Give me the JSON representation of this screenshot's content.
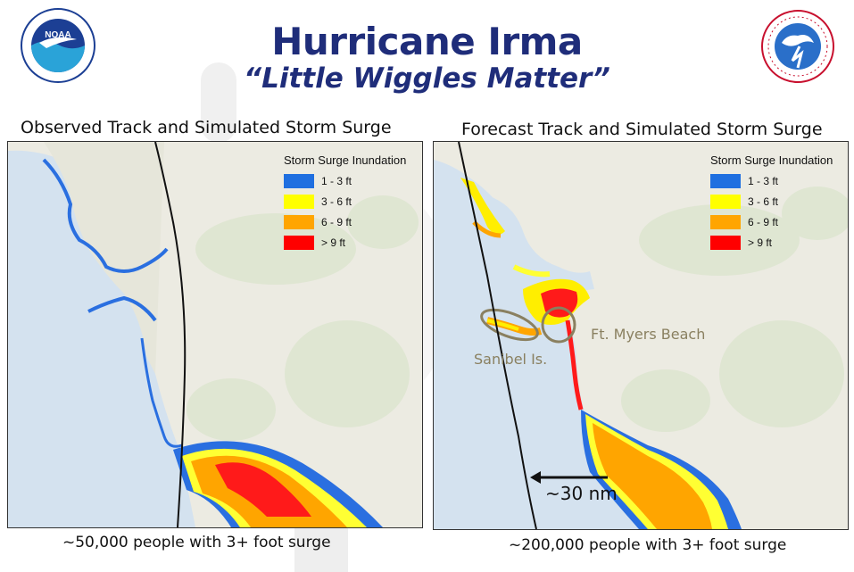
{
  "header": {
    "title": "Hurricane Irma",
    "subtitle": "“Little Wiggles Matter”"
  },
  "logos": {
    "left": "NOAA",
    "right": "NATIONAL WEATHER SERVICE"
  },
  "legend": {
    "title": "Storm Surge Inundation",
    "items": [
      {
        "label": "1 - 3  ft",
        "color": "#1f6fe0"
      },
      {
        "label": "3 - 6 ft",
        "color": "#ffff00"
      },
      {
        "label": "6 - 9 ft",
        "color": "#ffa500"
      },
      {
        "label": "> 9 ft",
        "color": "#ff0000"
      }
    ]
  },
  "panels": {
    "left": {
      "heading": "Observed Track and Simulated Storm Surge",
      "caption": "~50,000 people with 3+ foot surge"
    },
    "right": {
      "heading": "Forecast Track and Simulated Storm Surge",
      "caption": "~200,000 people with 3+ foot surge",
      "annotations": {
        "sanibel": "Sanibel Is.",
        "ft_myers": "Ft. Myers Beach",
        "distance": "~30 nm"
      }
    }
  }
}
